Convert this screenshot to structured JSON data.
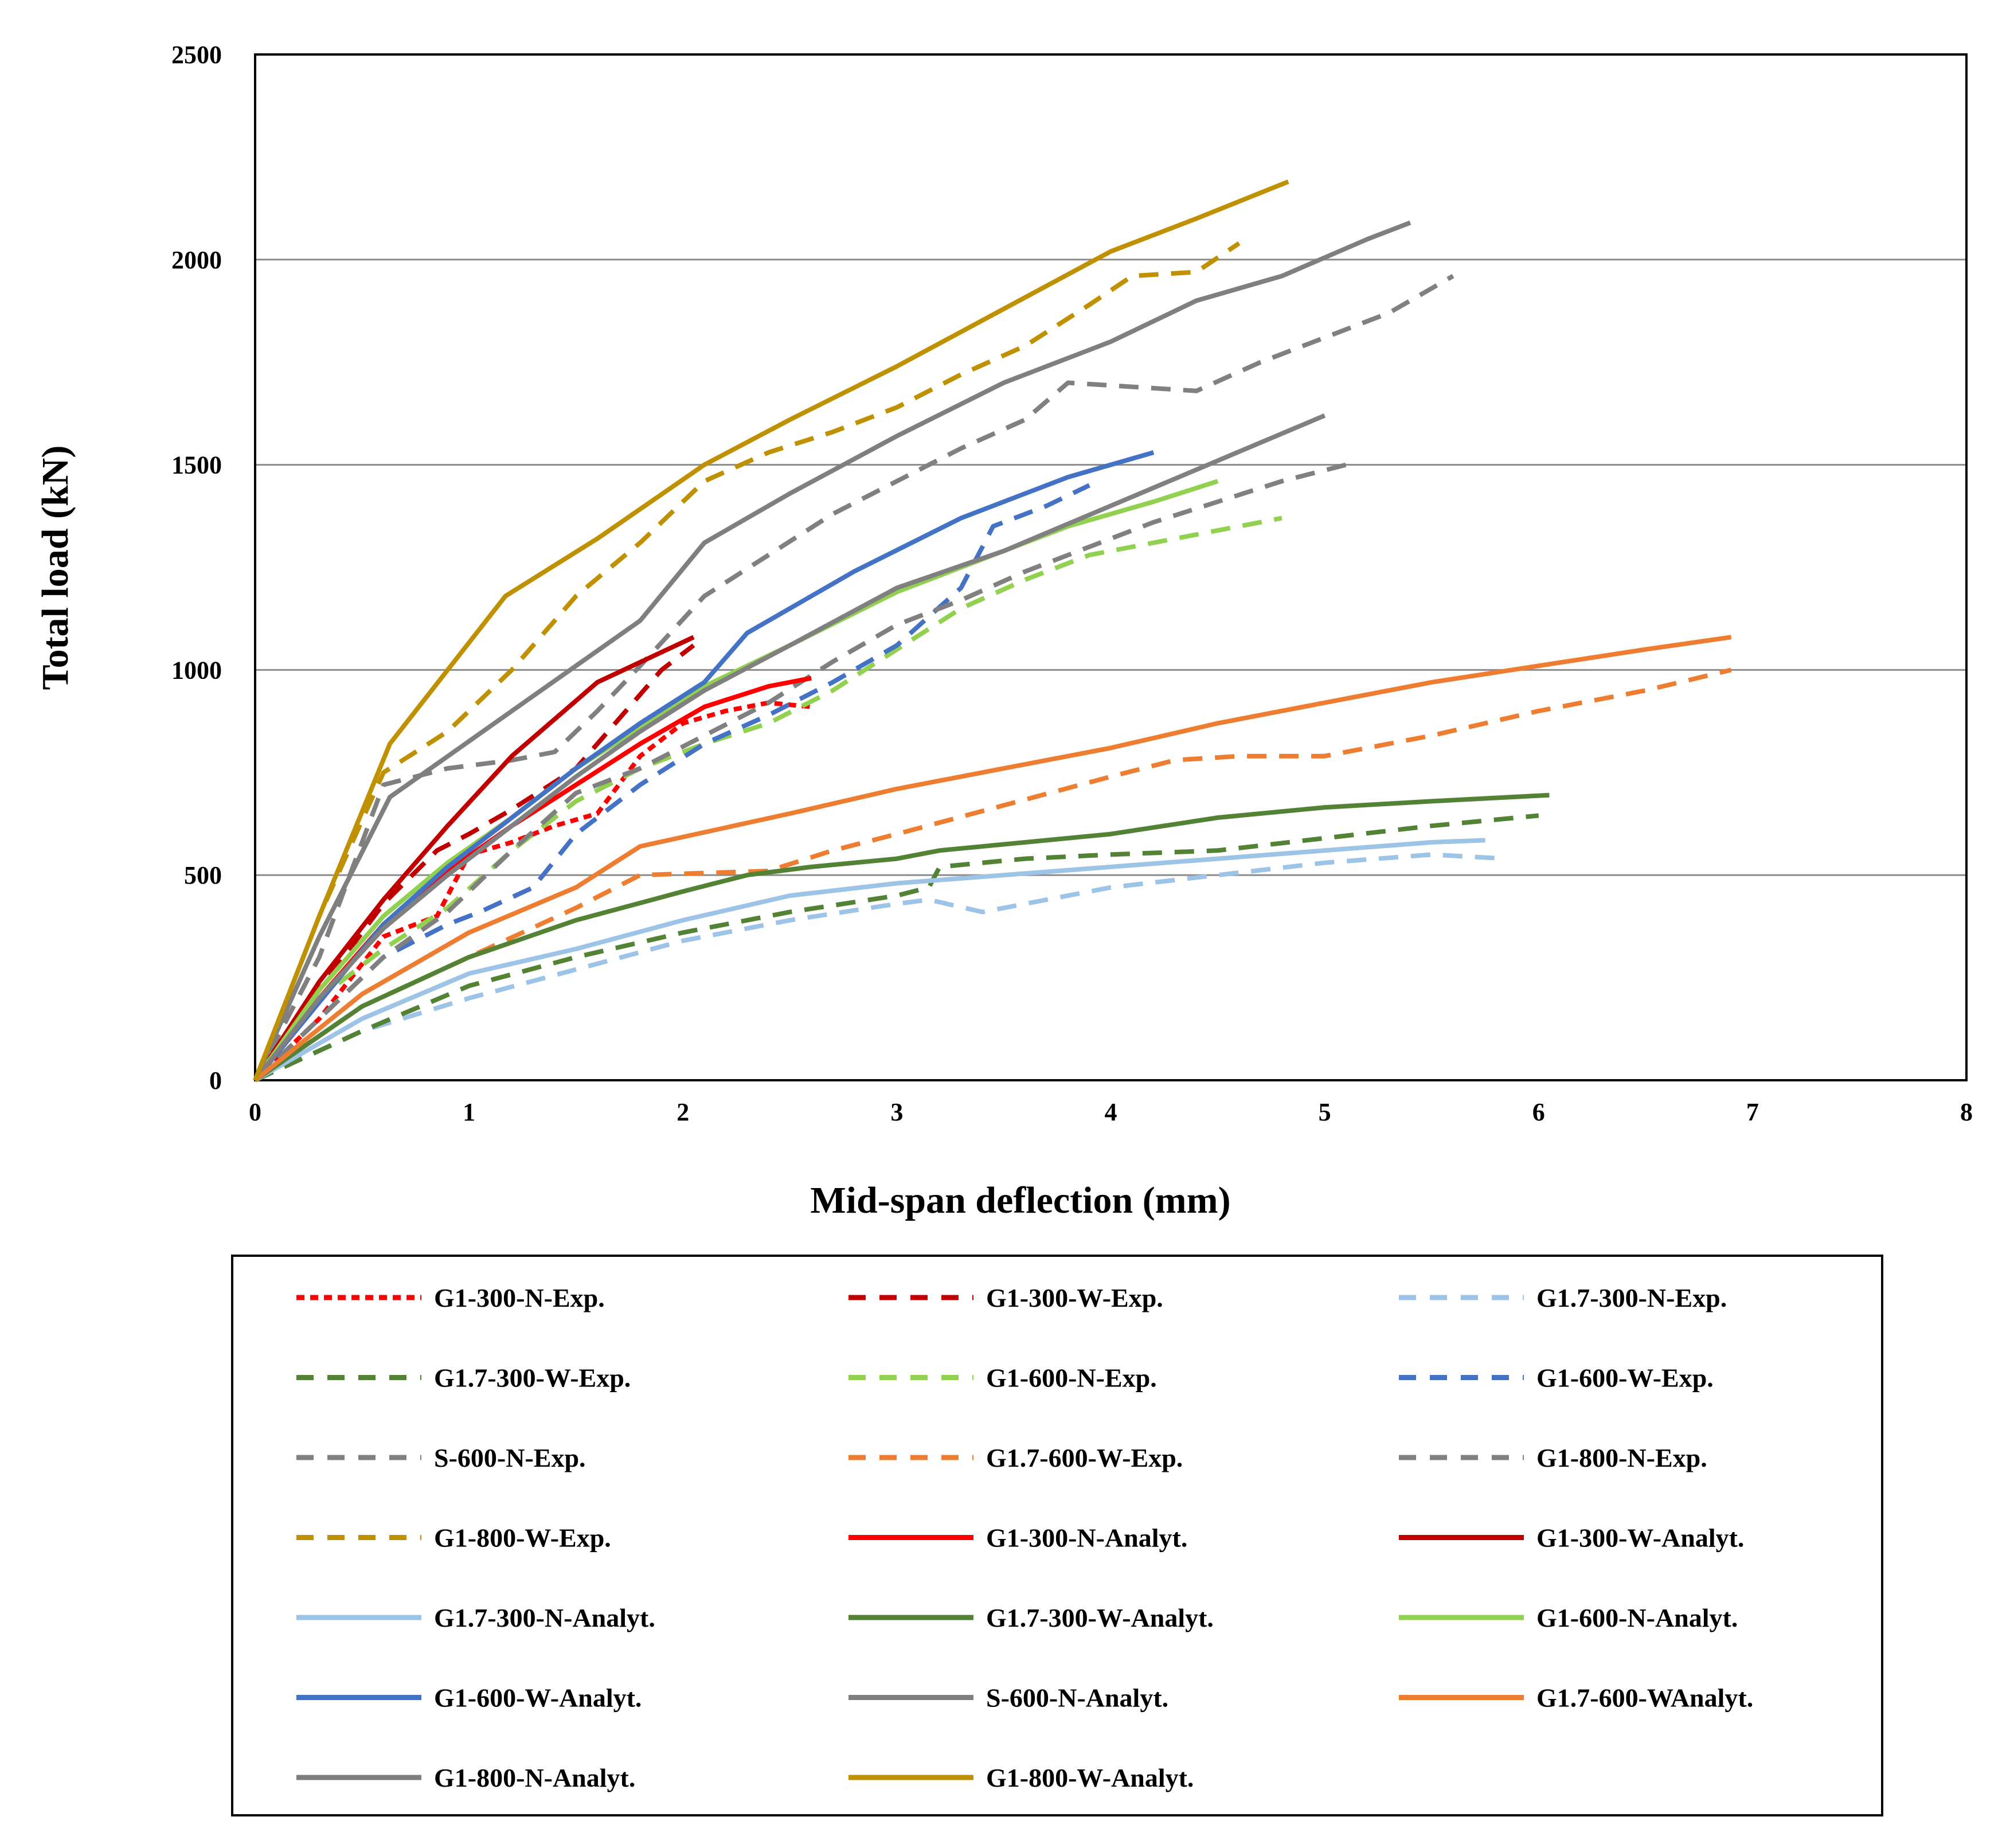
{
  "chart_data": {
    "type": "line",
    "title": "",
    "xlabel": "Mid-span deflection (mm)",
    "ylabel": "Total load (kN)",
    "xlim": [
      0,
      8
    ],
    "ylim": [
      0,
      2500
    ],
    "xticks": [
      0,
      1,
      2,
      3,
      4,
      5,
      6,
      7,
      8
    ],
    "yticks": [
      0,
      500,
      1000,
      1500,
      2000,
      2500
    ],
    "grid": "horizontal",
    "legend_position": "bottom",
    "series": [
      {
        "name": "G1-300-N-Exp.",
        "color": "#FF0000",
        "dash": "dotted",
        "points": [
          [
            0,
            0
          ],
          [
            0.3,
            150
          ],
          [
            0.6,
            350
          ],
          [
            0.85,
            400
          ],
          [
            1.0,
            550
          ],
          [
            1.2,
            580
          ],
          [
            1.4,
            620
          ],
          [
            1.6,
            650
          ],
          [
            1.8,
            790
          ],
          [
            2.0,
            870
          ],
          [
            2.2,
            900
          ],
          [
            2.4,
            920
          ],
          [
            2.6,
            910
          ]
        ]
      },
      {
        "name": "G1-300-W-Exp.",
        "color": "#C00000",
        "dash": "dashed",
        "points": [
          [
            0,
            0
          ],
          [
            0.3,
            220
          ],
          [
            0.6,
            430
          ],
          [
            0.85,
            560
          ],
          [
            1.0,
            600
          ],
          [
            1.2,
            660
          ],
          [
            1.5,
            760
          ],
          [
            1.7,
            880
          ],
          [
            1.9,
            1000
          ],
          [
            2.05,
            1060
          ]
        ]
      },
      {
        "name": "G1.7-300-N-Exp.",
        "color": "#9DC3E6",
        "dash": "dashed",
        "points": [
          [
            0,
            0
          ],
          [
            0.5,
            120
          ],
          [
            1.0,
            200
          ],
          [
            1.5,
            270
          ],
          [
            2.0,
            340
          ],
          [
            2.5,
            390
          ],
          [
            3.0,
            430
          ],
          [
            3.15,
            440
          ],
          [
            3.4,
            410
          ],
          [
            3.6,
            430
          ],
          [
            4.0,
            470
          ],
          [
            4.5,
            500
          ],
          [
            5.0,
            530
          ],
          [
            5.5,
            550
          ],
          [
            5.85,
            540
          ]
        ]
      },
      {
        "name": "G1.7-300-W-Exp.",
        "color": "#548235",
        "dash": "dashed",
        "points": [
          [
            0,
            0
          ],
          [
            0.5,
            120
          ],
          [
            1.0,
            230
          ],
          [
            1.5,
            300
          ],
          [
            2.0,
            360
          ],
          [
            2.5,
            410
          ],
          [
            3.0,
            450
          ],
          [
            3.15,
            470
          ],
          [
            3.2,
            520
          ],
          [
            3.6,
            540
          ],
          [
            4.0,
            550
          ],
          [
            4.5,
            560
          ],
          [
            5.0,
            590
          ],
          [
            5.5,
            620
          ],
          [
            6.0,
            645
          ]
        ]
      },
      {
        "name": "G1-600-N-Exp.",
        "color": "#92D050",
        "dash": "dashed",
        "points": [
          [
            0,
            0
          ],
          [
            0.3,
            200
          ],
          [
            0.6,
            320
          ],
          [
            0.9,
            420
          ],
          [
            1.2,
            560
          ],
          [
            1.5,
            680
          ],
          [
            1.8,
            760
          ],
          [
            2.1,
            820
          ],
          [
            2.4,
            870
          ],
          [
            2.7,
            950
          ],
          [
            3.0,
            1050
          ],
          [
            3.3,
            1150
          ],
          [
            3.6,
            1220
          ],
          [
            3.9,
            1280
          ],
          [
            4.2,
            1310
          ],
          [
            4.5,
            1340
          ],
          [
            4.8,
            1370
          ]
        ]
      },
      {
        "name": "G1-600-W-Exp.",
        "color": "#4472C4",
        "dash": "dashed",
        "points": [
          [
            0,
            0
          ],
          [
            0.3,
            150
          ],
          [
            0.6,
            300
          ],
          [
            0.9,
            380
          ],
          [
            1.05,
            410
          ],
          [
            1.3,
            470
          ],
          [
            1.5,
            600
          ],
          [
            1.8,
            720
          ],
          [
            2.1,
            820
          ],
          [
            2.4,
            890
          ],
          [
            2.7,
            970
          ],
          [
            3.0,
            1060
          ],
          [
            3.3,
            1200
          ],
          [
            3.45,
            1350
          ],
          [
            3.7,
            1400
          ],
          [
            3.9,
            1450
          ]
        ]
      },
      {
        "name": "S-600-N-Exp.",
        "color": "#808080",
        "dash": "dashed",
        "points": [
          [
            0,
            0
          ],
          [
            0.3,
            150
          ],
          [
            0.6,
            300
          ],
          [
            0.9,
            410
          ],
          [
            1.2,
            560
          ],
          [
            1.5,
            700
          ],
          [
            1.8,
            760
          ],
          [
            2.1,
            840
          ],
          [
            2.4,
            920
          ],
          [
            2.7,
            1020
          ],
          [
            3.0,
            1110
          ],
          [
            3.3,
            1170
          ],
          [
            3.6,
            1240
          ],
          [
            3.9,
            1300
          ],
          [
            4.2,
            1360
          ],
          [
            4.5,
            1410
          ],
          [
            4.8,
            1460
          ],
          [
            5.1,
            1500
          ]
        ]
      },
      {
        "name": "G1.7-600-W-Exp.",
        "color": "#ED7D31",
        "dash": "dashed",
        "points": [
          [
            0,
            0
          ],
          [
            0.5,
            180
          ],
          [
            1.0,
            300
          ],
          [
            1.5,
            420
          ],
          [
            1.8,
            500
          ],
          [
            2.1,
            505
          ],
          [
            2.4,
            510
          ],
          [
            2.7,
            560
          ],
          [
            3.0,
            600
          ],
          [
            3.5,
            670
          ],
          [
            4.0,
            740
          ],
          [
            4.3,
            780
          ],
          [
            4.6,
            790
          ],
          [
            5.0,
            790
          ],
          [
            5.5,
            840
          ],
          [
            6.0,
            900
          ],
          [
            6.5,
            950
          ],
          [
            6.9,
            1000
          ]
        ]
      },
      {
        "name": "G1-800-N-Exp.",
        "color": "#808080",
        "dash": "dashed",
        "points": [
          [
            0,
            0
          ],
          [
            0.3,
            300
          ],
          [
            0.6,
            720
          ],
          [
            0.9,
            760
          ],
          [
            1.2,
            780
          ],
          [
            1.4,
            800
          ],
          [
            1.6,
            900
          ],
          [
            1.8,
            1010
          ],
          [
            2.1,
            1180
          ],
          [
            2.4,
            1280
          ],
          [
            2.7,
            1380
          ],
          [
            3.0,
            1460
          ],
          [
            3.3,
            1540
          ],
          [
            3.6,
            1610
          ],
          [
            3.8,
            1700
          ],
          [
            4.1,
            1690
          ],
          [
            4.4,
            1680
          ],
          [
            4.7,
            1750
          ],
          [
            5.0,
            1810
          ],
          [
            5.3,
            1870
          ],
          [
            5.6,
            1960
          ]
        ]
      },
      {
        "name": "G1-800-W-Exp.",
        "color": "#BF9000",
        "dash": "dashed",
        "points": [
          [
            0,
            0
          ],
          [
            0.3,
            400
          ],
          [
            0.6,
            750
          ],
          [
            0.9,
            850
          ],
          [
            1.2,
            1000
          ],
          [
            1.5,
            1180
          ],
          [
            1.8,
            1310
          ],
          [
            2.1,
            1460
          ],
          [
            2.4,
            1530
          ],
          [
            2.7,
            1580
          ],
          [
            3.0,
            1640
          ],
          [
            3.3,
            1720
          ],
          [
            3.6,
            1790
          ],
          [
            3.9,
            1890
          ],
          [
            4.1,
            1960
          ],
          [
            4.4,
            1970
          ],
          [
            4.6,
            2040
          ]
        ]
      },
      {
        "name": "G1-300-N-Analyt.",
        "color": "#FF0000",
        "dash": "solid",
        "points": [
          [
            0,
            0
          ],
          [
            0.3,
            200
          ],
          [
            0.6,
            380
          ],
          [
            0.9,
            510
          ],
          [
            1.2,
            620
          ],
          [
            1.5,
            720
          ],
          [
            1.8,
            820
          ],
          [
            2.1,
            910
          ],
          [
            2.4,
            960
          ],
          [
            2.6,
            980
          ]
        ]
      },
      {
        "name": "G1-300-W-Analyt.",
        "color": "#C00000",
        "dash": "solid",
        "points": [
          [
            0,
            0
          ],
          [
            0.3,
            240
          ],
          [
            0.6,
            440
          ],
          [
            0.9,
            620
          ],
          [
            1.2,
            790
          ],
          [
            1.6,
            970
          ],
          [
            2.05,
            1080
          ]
        ]
      },
      {
        "name": "G1.7-300-N-Analyt.",
        "color": "#9DC3E6",
        "dash": "solid",
        "points": [
          [
            0,
            0
          ],
          [
            0.5,
            150
          ],
          [
            1.0,
            260
          ],
          [
            1.5,
            320
          ],
          [
            2.0,
            390
          ],
          [
            2.5,
            450
          ],
          [
            3.0,
            480
          ],
          [
            3.5,
            500
          ],
          [
            4.0,
            520
          ],
          [
            4.5,
            540
          ],
          [
            5.0,
            560
          ],
          [
            5.5,
            580
          ],
          [
            5.75,
            585
          ]
        ]
      },
      {
        "name": "G1.7-300-W-Analyt.",
        "color": "#548235",
        "dash": "solid",
        "points": [
          [
            0,
            0
          ],
          [
            0.5,
            180
          ],
          [
            1.0,
            300
          ],
          [
            1.5,
            390
          ],
          [
            2.0,
            460
          ],
          [
            2.3,
            500
          ],
          [
            2.6,
            520
          ],
          [
            3.0,
            540
          ],
          [
            3.2,
            560
          ],
          [
            3.6,
            580
          ],
          [
            4.0,
            600
          ],
          [
            4.5,
            640
          ],
          [
            5.0,
            665
          ],
          [
            5.5,
            680
          ],
          [
            6.05,
            695
          ]
        ]
      },
      {
        "name": "G1-600-N-Analyt.",
        "color": "#92D050",
        "dash": "solid",
        "points": [
          [
            0,
            0
          ],
          [
            0.3,
            220
          ],
          [
            0.6,
            400
          ],
          [
            0.9,
            530
          ],
          [
            1.2,
            640
          ],
          [
            1.5,
            760
          ],
          [
            1.8,
            860
          ],
          [
            2.1,
            960
          ],
          [
            2.5,
            1060
          ],
          [
            3.0,
            1190
          ],
          [
            3.5,
            1290
          ],
          [
            3.8,
            1350
          ],
          [
            4.2,
            1410
          ],
          [
            4.5,
            1460
          ]
        ]
      },
      {
        "name": "G1-600-W-Analyt.",
        "color": "#4472C4",
        "dash": "solid",
        "points": [
          [
            0,
            0
          ],
          [
            0.3,
            190
          ],
          [
            0.6,
            380
          ],
          [
            0.9,
            520
          ],
          [
            1.2,
            640
          ],
          [
            1.5,
            760
          ],
          [
            1.8,
            870
          ],
          [
            2.1,
            970
          ],
          [
            2.3,
            1090
          ],
          [
            2.8,
            1240
          ],
          [
            3.3,
            1370
          ],
          [
            3.8,
            1470
          ],
          [
            4.2,
            1530
          ]
        ]
      },
      {
        "name": "S-600-N-Analyt.",
        "color": "#808080",
        "dash": "solid",
        "points": [
          [
            0,
            0
          ],
          [
            0.3,
            200
          ],
          [
            0.6,
            370
          ],
          [
            0.9,
            500
          ],
          [
            1.2,
            620
          ],
          [
            1.5,
            740
          ],
          [
            1.8,
            850
          ],
          [
            2.1,
            950
          ],
          [
            2.5,
            1060
          ],
          [
            3.0,
            1200
          ],
          [
            3.5,
            1290
          ],
          [
            4.0,
            1400
          ],
          [
            4.5,
            1510
          ],
          [
            5.0,
            1620
          ]
        ]
      },
      {
        "name": "G1.7-600-WAnalyt.",
        "color": "#ED7D31",
        "dash": "solid",
        "points": [
          [
            0,
            0
          ],
          [
            0.5,
            210
          ],
          [
            1.0,
            360
          ],
          [
            1.5,
            470
          ],
          [
            1.8,
            570
          ],
          [
            2.5,
            650
          ],
          [
            3.0,
            710
          ],
          [
            3.5,
            760
          ],
          [
            4.0,
            810
          ],
          [
            4.5,
            870
          ],
          [
            5.0,
            920
          ],
          [
            5.5,
            970
          ],
          [
            6.0,
            1010
          ],
          [
            6.5,
            1050
          ],
          [
            6.9,
            1080
          ]
        ]
      },
      {
        "name": "G1-800-N-Analyt.",
        "color": "#7F7F7F",
        "dash": "solid",
        "points": [
          [
            0,
            0
          ],
          [
            0.3,
            350
          ],
          [
            0.63,
            690
          ],
          [
            1.2,
            900
          ],
          [
            1.5,
            1010
          ],
          [
            1.8,
            1120
          ],
          [
            2.1,
            1310
          ],
          [
            2.5,
            1430
          ],
          [
            3.0,
            1570
          ],
          [
            3.5,
            1700
          ],
          [
            4.0,
            1800
          ],
          [
            4.4,
            1900
          ],
          [
            4.8,
            1960
          ],
          [
            5.2,
            2050
          ],
          [
            5.4,
            2090
          ]
        ]
      },
      {
        "name": "G1-800-W-Analyt.",
        "color": "#BF9000",
        "dash": "solid",
        "points": [
          [
            0,
            0
          ],
          [
            0.3,
            400
          ],
          [
            0.63,
            820
          ],
          [
            1.17,
            1180
          ],
          [
            1.6,
            1320
          ],
          [
            2.1,
            1500
          ],
          [
            2.5,
            1610
          ],
          [
            3.0,
            1740
          ],
          [
            3.5,
            1880
          ],
          [
            4.0,
            2020
          ],
          [
            4.4,
            2100
          ],
          [
            4.83,
            2190
          ]
        ]
      }
    ]
  }
}
